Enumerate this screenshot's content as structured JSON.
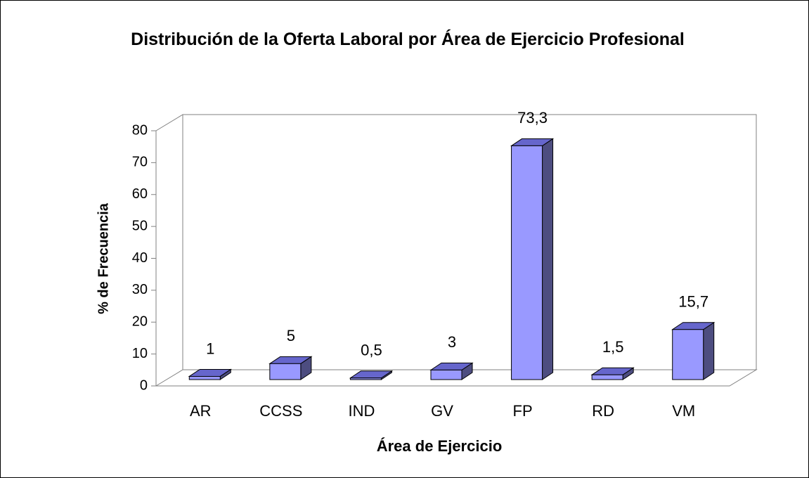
{
  "chart_data": {
    "type": "bar3d",
    "title": "Distribución de la Oferta Laboral por Área de Ejercicio Profesional",
    "x_label": "Área de Ejercicio",
    "y_label": "% de Frecuencia",
    "categories": [
      "AR",
      "CCSS",
      "IND",
      "GV",
      "FP",
      "RD",
      "VM"
    ],
    "values": [
      1,
      5,
      0.5,
      3,
      73.3,
      1.5,
      15.7
    ],
    "value_labels": [
      "1",
      "5",
      "0,5",
      "3",
      "73,3",
      "1,5",
      "15,7"
    ],
    "color": "#9999ff",
    "ylim": [
      0,
      80
    ],
    "yticks": [
      0,
      10,
      20,
      30,
      40,
      50,
      60,
      70,
      80
    ],
    "grid": false
  }
}
